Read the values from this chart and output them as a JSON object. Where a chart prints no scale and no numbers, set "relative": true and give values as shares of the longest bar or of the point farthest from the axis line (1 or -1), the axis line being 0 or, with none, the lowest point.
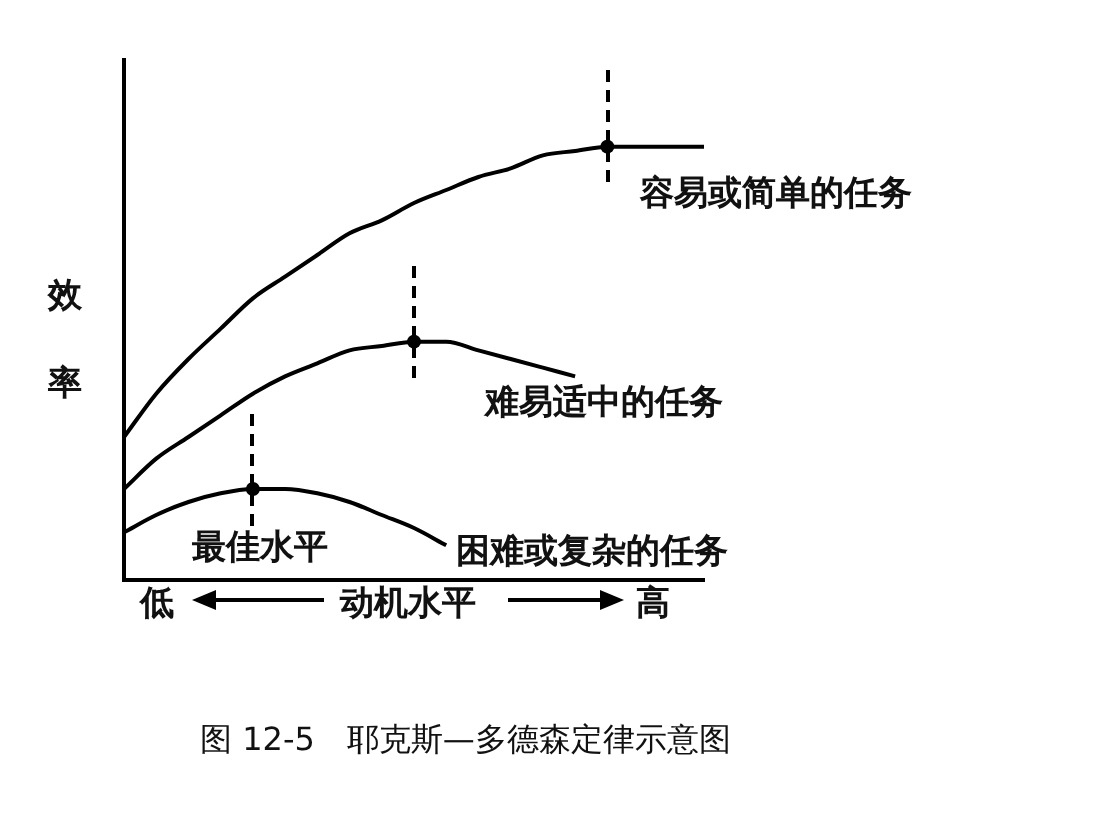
{
  "chart_data": {
    "type": "line",
    "relative": true,
    "title": "图 12-5　耶克斯—多德森定律示意图",
    "ylabel": "效率",
    "xlabel": "动机水平",
    "categories": [
      null,
      null,
      null,
      null,
      null,
      null,
      null,
      null,
      null,
      null,
      null,
      null,
      null,
      null,
      null,
      null,
      null,
      null,
      null
    ],
    "series": [
      {
        "name": "容易或简单的任务",
        "color": "#000000",
        "values": [
          0.33,
          0.43,
          0.51,
          0.58,
          0.65,
          0.7,
          0.75,
          0.8,
          0.83,
          0.87,
          0.9,
          0.93,
          0.95,
          0.98,
          0.99,
          1,
          1,
          1,
          1
        ]
      },
      {
        "name": "难易适中的任务",
        "color": "#000000",
        "values": [
          0.21,
          0.28,
          0.33,
          0.38,
          0.43,
          0.47,
          0.5,
          0.53,
          0.54,
          0.55,
          0.55,
          0.53,
          0.51,
          0.49,
          0.47,
          null,
          null,
          null,
          null
        ]
      },
      {
        "name": "困难或复杂的任务",
        "color": "#000000",
        "values": [
          0.11,
          0.15,
          0.18,
          0.2,
          0.21,
          0.21,
          0.2,
          0.18,
          0.15,
          0.12,
          0.08,
          null,
          null,
          null,
          null,
          null,
          null,
          null,
          null
        ]
      }
    ],
    "annotations": [
      "低",
      "高",
      "最佳水平"
    ],
    "legend": false,
    "grid": false,
    "marker": "none",
    "line_style": "solid"
  }
}
